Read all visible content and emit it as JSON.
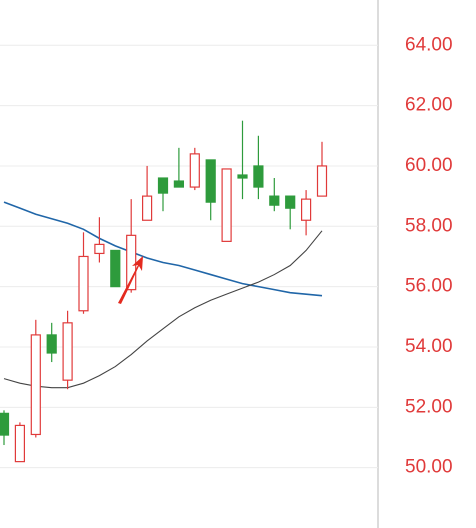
{
  "chart_data": {
    "type": "candlestick",
    "categories": [
      null,
      null,
      null,
      null,
      null,
      null,
      null,
      null,
      null,
      null,
      null,
      null,
      null,
      null,
      null,
      null,
      null,
      null,
      null,
      null,
      null
    ],
    "open": [
      51.8,
      50.2,
      51.1,
      54.4,
      52.9,
      55.2,
      57.1,
      57.2,
      55.9,
      58.2,
      59.6,
      59.5,
      59.3,
      60.2,
      57.5,
      59.7,
      60.0,
      59.0,
      59.0,
      58.2,
      59.0
    ],
    "high": [
      51.9,
      51.5,
      54.9,
      54.8,
      55.2,
      57.8,
      58.3,
      57.2,
      58.9,
      60.0,
      59.6,
      60.6,
      60.6,
      60.2,
      59.9,
      61.5,
      61.0,
      59.6,
      59.0,
      59.2,
      60.8
    ],
    "low": [
      50.75,
      50.2,
      51.0,
      53.5,
      52.6,
      55.1,
      56.8,
      56.0,
      55.8,
      58.2,
      58.5,
      59.3,
      59.2,
      58.2,
      57.5,
      58.9,
      58.9,
      58.5,
      57.9,
      57.7,
      59.0
    ],
    "close": [
      51.08,
      51.4,
      54.4,
      53.8,
      54.8,
      57.0,
      57.4,
      56.0,
      57.7,
      59.0,
      59.1,
      59.3,
      60.4,
      58.8,
      59.9,
      59.6,
      59.3,
      58.7,
      58.6,
      58.9,
      60.0
    ],
    "up_color": "#e03a3a",
    "down_color": "#2e9b3c",
    "series": [
      {
        "color": "#2066a8",
        "values": [
          58.8,
          58.6,
          58.4,
          58.25,
          58.1,
          57.9,
          57.6,
          57.35,
          57.15,
          56.95,
          56.8,
          56.7,
          56.55,
          56.4,
          56.25,
          56.1,
          56.0,
          55.9,
          55.8,
          55.75,
          55.7
        ]
      },
      {
        "color": "#444444",
        "values": [
          52.95,
          52.8,
          52.7,
          52.65,
          52.65,
          52.8,
          53.05,
          53.35,
          53.75,
          54.2,
          54.6,
          55.0,
          55.3,
          55.55,
          55.75,
          55.95,
          56.15,
          56.4,
          56.7,
          57.2,
          57.85
        ]
      }
    ],
    "ylim": [
      48,
      65.5
    ],
    "yticks": [
      {
        "value": 50,
        "label": "50.00"
      },
      {
        "value": 52,
        "label": "52.00"
      },
      {
        "value": 54,
        "label": "54.00"
      },
      {
        "value": 56,
        "label": "56.00"
      },
      {
        "value": 58,
        "label": "58.00"
      },
      {
        "value": 60,
        "label": "60.00"
      },
      {
        "value": 62,
        "label": "62.00"
      },
      {
        "value": 64,
        "label": "64.00"
      }
    ],
    "tick_color": "#e03a3a",
    "grid": true
  }
}
